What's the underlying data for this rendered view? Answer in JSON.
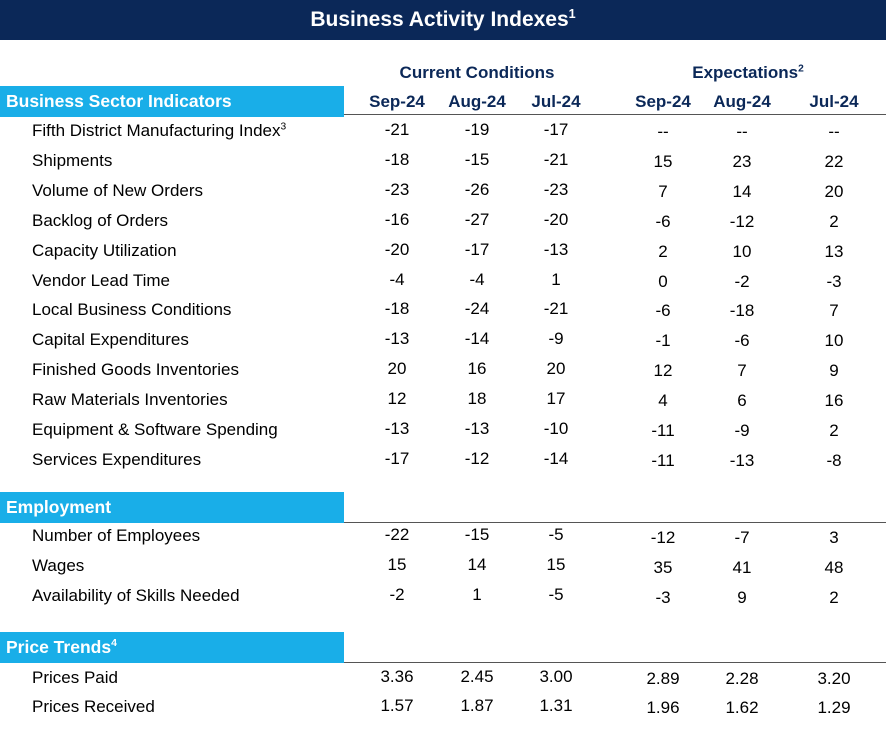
{
  "title": "Business Activity Indexes",
  "title_note": "1",
  "headers": {
    "current_group": "Current Conditions",
    "expect_group": "Expectations",
    "expect_note": "2",
    "months": [
      "Sep-24",
      "Aug-24",
      "Jul-24",
      "Sep-24",
      "Aug-24",
      "Jul-24"
    ]
  },
  "sections": [
    {
      "name": "Business Sector Indicators",
      "note": "",
      "rows": [
        {
          "label": "Fifth District Manufacturing Index",
          "note": "3",
          "values": [
            "-21",
            "-19",
            "-17",
            "--",
            "--",
            "--"
          ]
        },
        {
          "label": "Shipments",
          "note": "",
          "values": [
            "-18",
            "-15",
            "-21",
            "15",
            "23",
            "22"
          ]
        },
        {
          "label": "Volume of New Orders",
          "note": "",
          "values": [
            "-23",
            "-26",
            "-23",
            "7",
            "14",
            "20"
          ]
        },
        {
          "label": "Backlog of Orders",
          "note": "",
          "values": [
            "-16",
            "-27",
            "-20",
            "-6",
            "-12",
            "2"
          ]
        },
        {
          "label": "Capacity Utilization",
          "note": "",
          "values": [
            "-20",
            "-17",
            "-13",
            "2",
            "10",
            "13"
          ]
        },
        {
          "label": "Vendor Lead Time",
          "note": "",
          "values": [
            "-4",
            "-4",
            "1",
            "0",
            "-2",
            "-3"
          ]
        },
        {
          "label": "Local Business Conditions",
          "note": "",
          "values": [
            "-18",
            "-24",
            "-21",
            "-6",
            "-18",
            "7"
          ]
        },
        {
          "label": "Capital Expenditures",
          "note": "",
          "values": [
            "-13",
            "-14",
            "-9",
            "-1",
            "-6",
            "10"
          ]
        },
        {
          "label": "Finished Goods Inventories",
          "note": "",
          "values": [
            "20",
            "16",
            "20",
            "12",
            "7",
            "9"
          ]
        },
        {
          "label": "Raw Materials Inventories",
          "note": "",
          "values": [
            "12",
            "18",
            "17",
            "4",
            "6",
            "16"
          ]
        },
        {
          "label": "Equipment & Software Spending",
          "note": "",
          "values": [
            "-13",
            "-13",
            "-10",
            "-11",
            "-9",
            "2"
          ]
        },
        {
          "label": "Services Expenditures",
          "note": "",
          "values": [
            "-17",
            "-12",
            "-14",
            "-11",
            "-13",
            "-8"
          ]
        }
      ]
    },
    {
      "name": "Employment",
      "note": "",
      "rows": [
        {
          "label": "Number of Employees",
          "note": "",
          "values": [
            "-22",
            "-15",
            "-5",
            "-12",
            "-7",
            "3"
          ]
        },
        {
          "label": "Wages",
          "note": "",
          "values": [
            "15",
            "14",
            "15",
            "35",
            "41",
            "48"
          ]
        },
        {
          "label": "Availability of Skills Needed",
          "note": "",
          "values": [
            "-2",
            "1",
            "-5",
            "-3",
            "9",
            "2"
          ]
        }
      ]
    },
    {
      "name": "Price Trends",
      "note": "4",
      "rows": [
        {
          "label": "Prices Paid",
          "note": "",
          "values": [
            "3.36",
            "2.45",
            "3.00",
            "2.89",
            "2.28",
            "3.20"
          ]
        },
        {
          "label": "Prices Received",
          "note": "",
          "values": [
            "1.57",
            "1.87",
            "1.31",
            "1.96",
            "1.62",
            "1.29"
          ]
        }
      ]
    }
  ]
}
